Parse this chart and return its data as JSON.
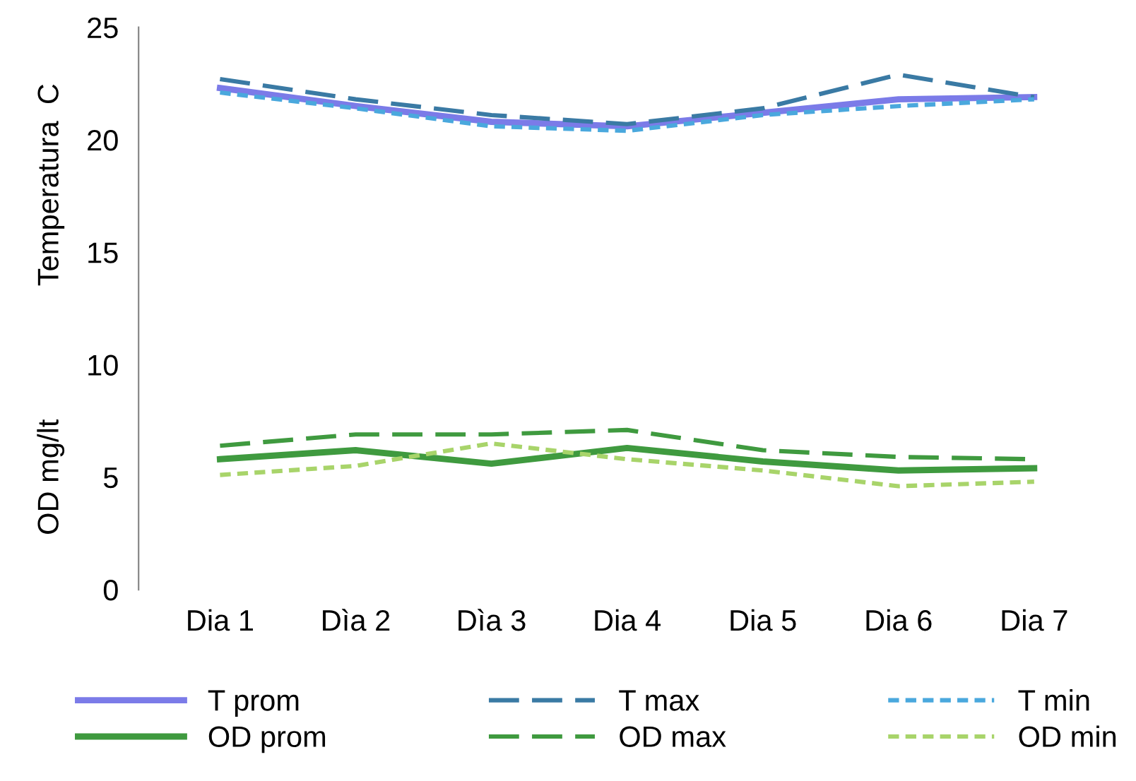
{
  "chart_data": {
    "type": "line",
    "ylabel": "Temperatura  C",
    "annotations": [
      "OD mg/lt"
    ],
    "categories": [
      "Dia 1",
      "Dìa 2",
      "Dìa 3",
      "Dia 4",
      "Dia 5",
      "Dia 6",
      "Dia 7"
    ],
    "series": [
      {
        "name": "T prom",
        "color": "#7b7be8",
        "line_style": "solid",
        "values": [
          22.3,
          21.5,
          20.8,
          20.6,
          21.2,
          21.8,
          21.9
        ]
      },
      {
        "name": "T max",
        "color": "#3a7aa4",
        "line_style": "dashed",
        "values": [
          22.7,
          21.8,
          21.1,
          20.7,
          21.4,
          22.9,
          21.9
        ]
      },
      {
        "name": "T min",
        "color": "#4aa8dd",
        "line_style": "dotted",
        "values": [
          22.1,
          21.4,
          20.6,
          20.4,
          21.1,
          21.5,
          21.8
        ]
      },
      {
        "name": "OD prom",
        "color": "#3f9a3f",
        "line_style": "solid",
        "values": [
          5.8,
          6.2,
          5.6,
          6.3,
          5.7,
          5.3,
          5.4
        ]
      },
      {
        "name": "OD max",
        "color": "#3f9a3f",
        "line_style": "dashed",
        "values": [
          6.4,
          6.9,
          6.9,
          7.1,
          6.2,
          5.9,
          5.8
        ]
      },
      {
        "name": "OD min",
        "color": "#a8d46a",
        "line_style": "dotted",
        "values": [
          5.1,
          5.5,
          6.5,
          5.8,
          5.3,
          4.6,
          4.8
        ]
      }
    ],
    "ylim": [
      0,
      25
    ],
    "yticks": [
      0,
      5,
      10,
      15,
      20,
      25
    ],
    "grid": false,
    "legend": "bottom",
    "marker": "none"
  }
}
